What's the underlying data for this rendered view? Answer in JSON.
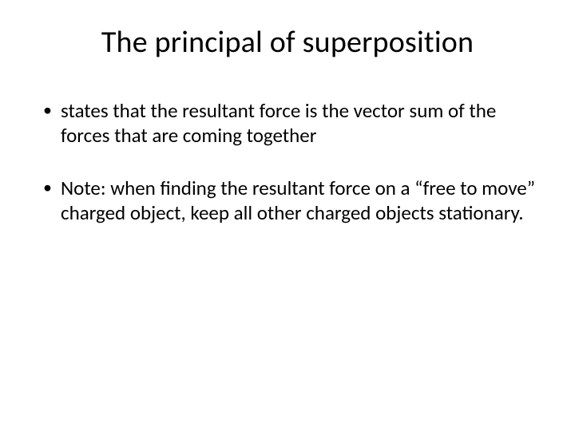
{
  "slide": {
    "background_color": "#ffffff",
    "text_color": "#000000",
    "title": {
      "text": "The principal of superposition",
      "font_size_pt": 38,
      "font_weight": 400,
      "align": "center"
    },
    "body": {
      "font_size_pt": 25,
      "bullets": [
        "states that the resultant force is the vector sum of the forces that are coming together",
        "Note: when finding the resultant force on a “free to move” charged object, keep all other charged objects stationary."
      ]
    }
  }
}
